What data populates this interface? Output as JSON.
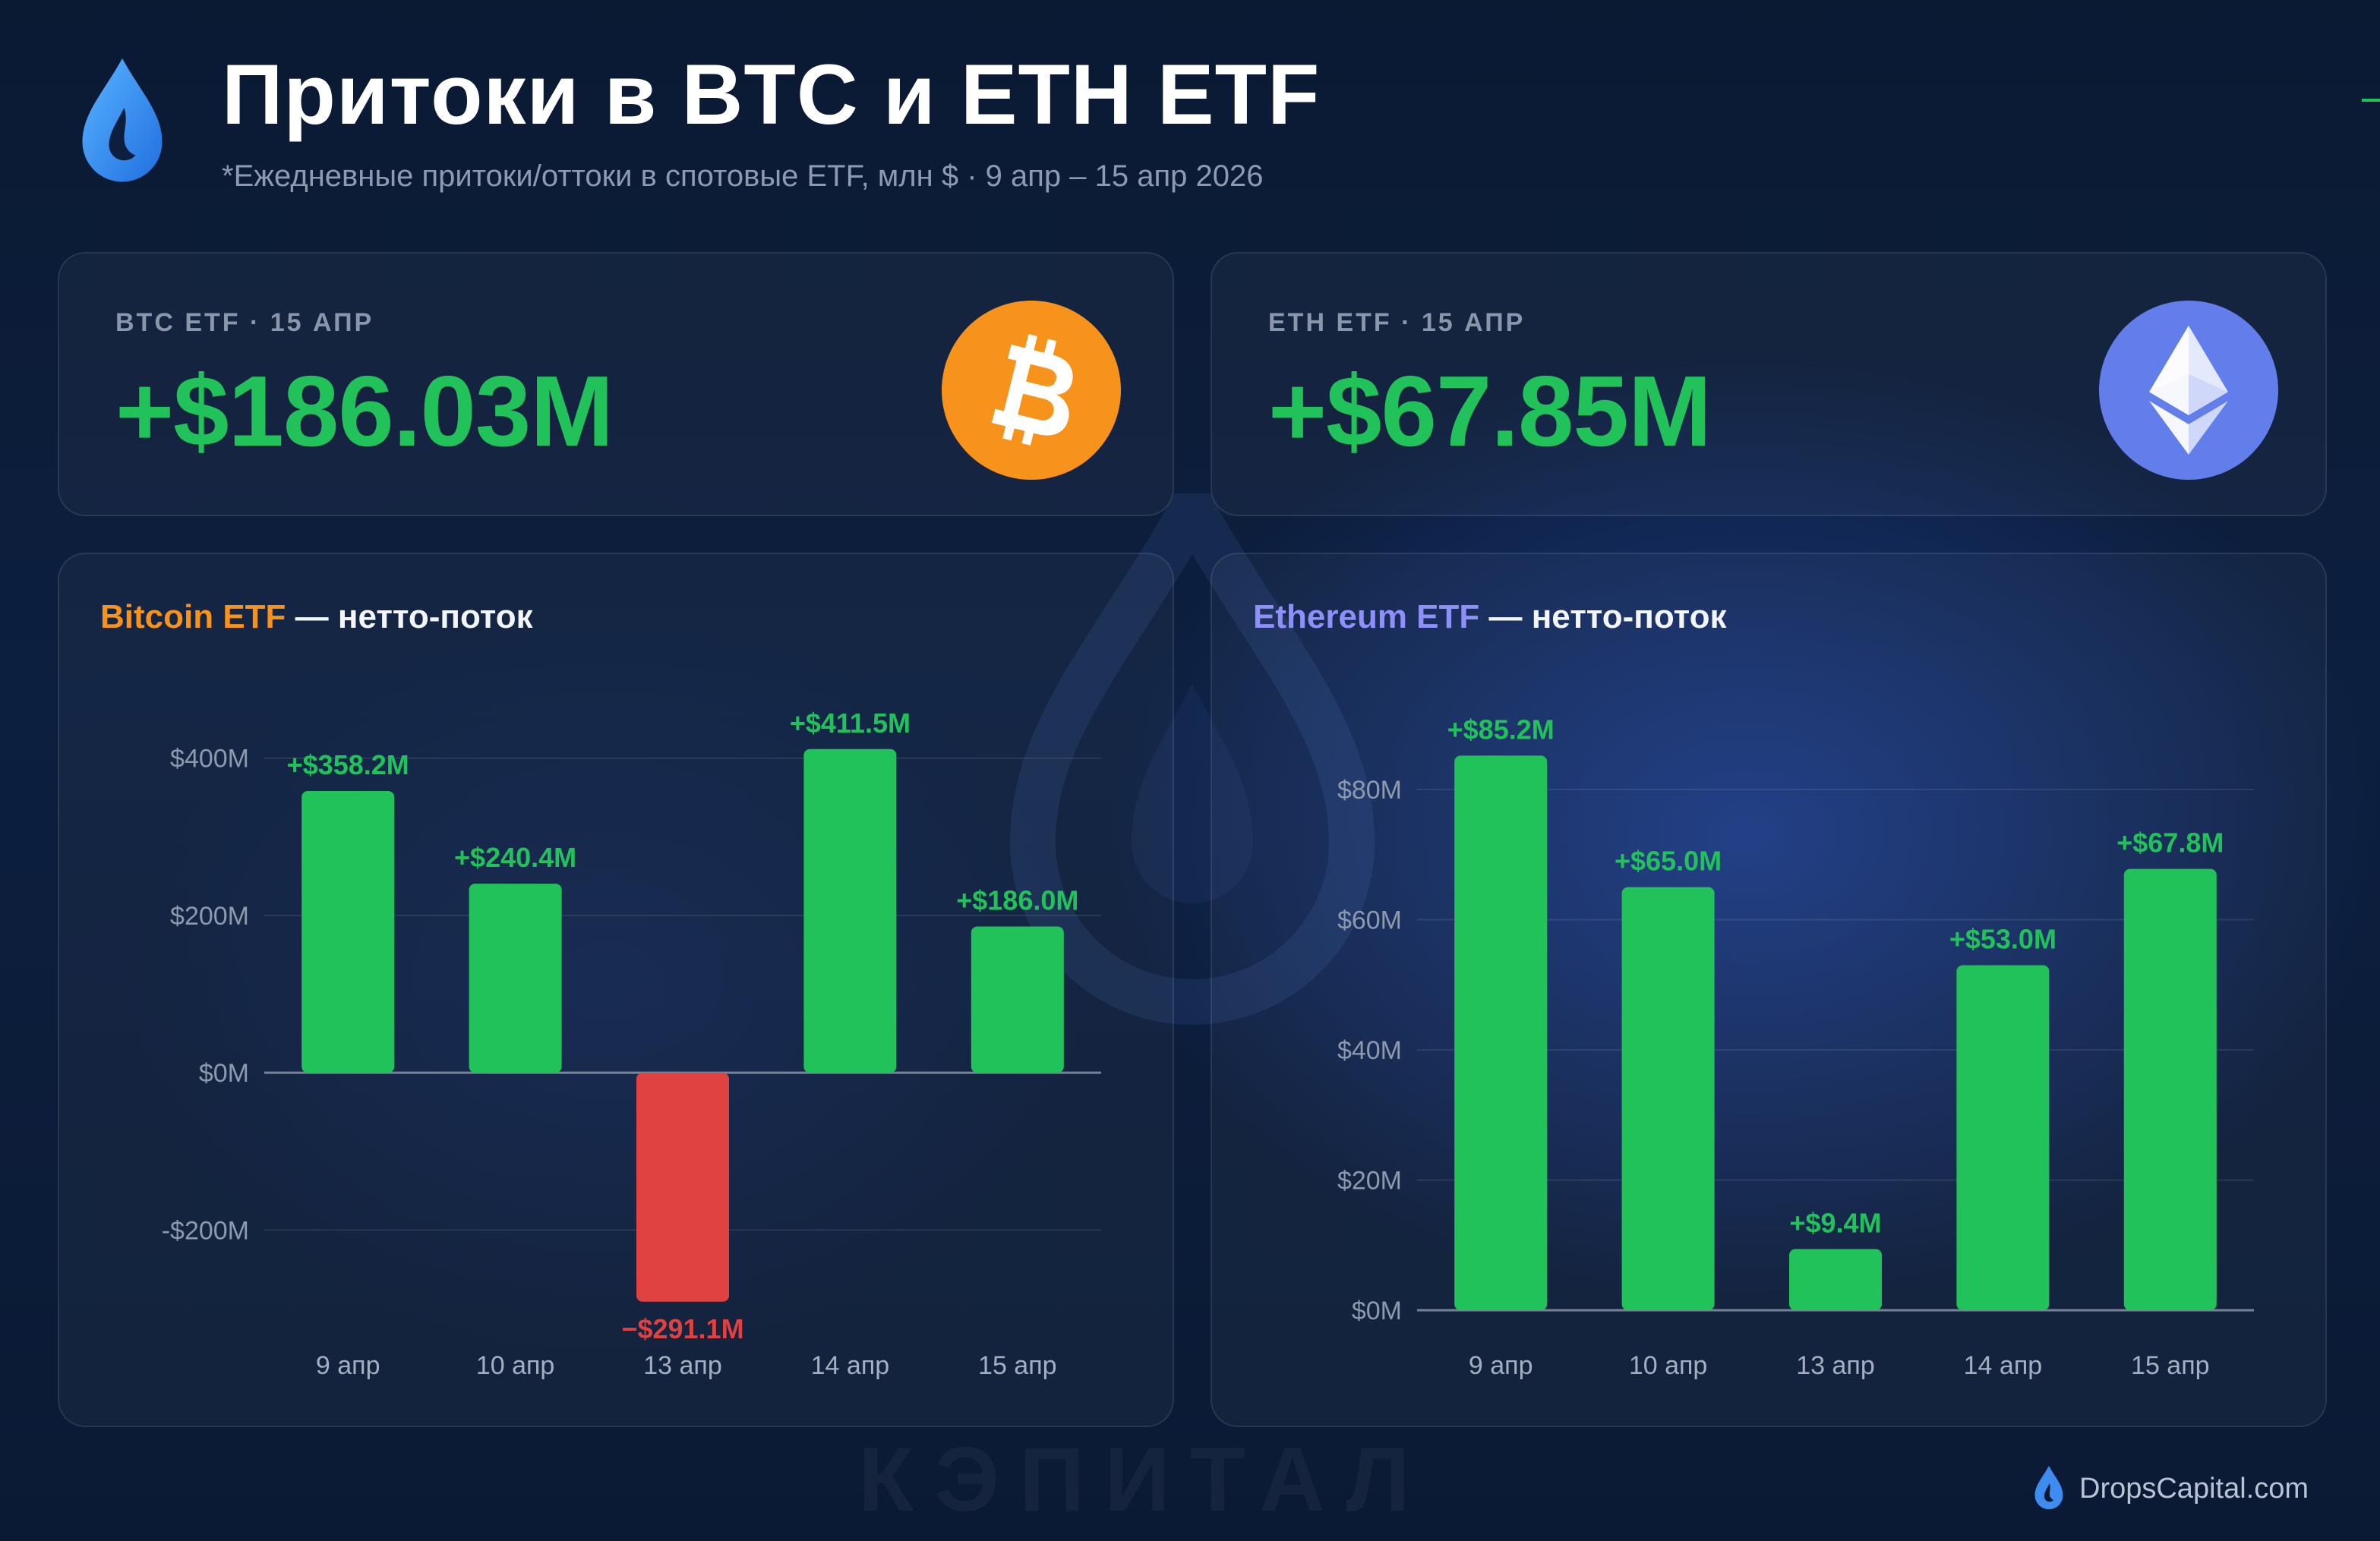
{
  "header": {
    "title": "Притоки в BTC и ETH ETF",
    "subtitle": "*Ежедневные притоки/оттоки в спотовые ETF, млн $ · 9 апр – 15 апр 2026"
  },
  "kpis": {
    "btc": {
      "label": "BTC ETF · 15 АПР",
      "value": "+$186.03M",
      "icon": "bitcoin-icon",
      "color": "#f7931a"
    },
    "eth": {
      "label": "ETH ETF · 15 АПР",
      "value": "+$67.85M",
      "icon": "ethereum-icon",
      "color": "#627eea"
    }
  },
  "colors": {
    "positive": "#22c25a",
    "negative": "#e04141",
    "btc_accent": "#f7931a",
    "eth_accent": "#8e8ff8"
  },
  "watermark": {
    "text": "КЭПИТАЛ",
    "icon": "drop-icon"
  },
  "footer": {
    "text": "DropsCapital.com",
    "icon": "drop-icon"
  },
  "chart_data": [
    {
      "type": "bar",
      "title_accent": "Bitcoin ETF",
      "title_rest": " — нетто-поток",
      "categories": [
        "9 апр",
        "10 апр",
        "13 апр",
        "14 апр",
        "15 апр"
      ],
      "values": [
        358.2,
        240.4,
        -291.1,
        411.5,
        186.0
      ],
      "labels": [
        "+$358.2M",
        "+$240.4M",
        "−$291.1M",
        "+$411.5M",
        "+$186.0M"
      ],
      "yticks": [
        400,
        200,
        0,
        -200
      ],
      "ytick_labels": [
        "$400M",
        "$200M",
        "$0M",
        "-$200M"
      ],
      "ylim": [
        -300,
        420
      ],
      "grid": true
    },
    {
      "type": "bar",
      "title_accent": "Ethereum ETF",
      "title_rest": " — нетто-поток",
      "categories": [
        "9 апр",
        "10 апр",
        "13 апр",
        "14 апр",
        "15 апр"
      ],
      "values": [
        85.2,
        65.0,
        9.4,
        53.0,
        67.8
      ],
      "labels": [
        "+$85.2M",
        "+$65.0M",
        "+$9.4M",
        "+$53.0M",
        "+$67.8M"
      ],
      "yticks": [
        80,
        60,
        40,
        20,
        0
      ],
      "ytick_labels": [
        "$80M",
        "$60M",
        "$40M",
        "$20M",
        "$0M"
      ],
      "ylim": [
        0,
        87
      ],
      "grid": true
    }
  ]
}
